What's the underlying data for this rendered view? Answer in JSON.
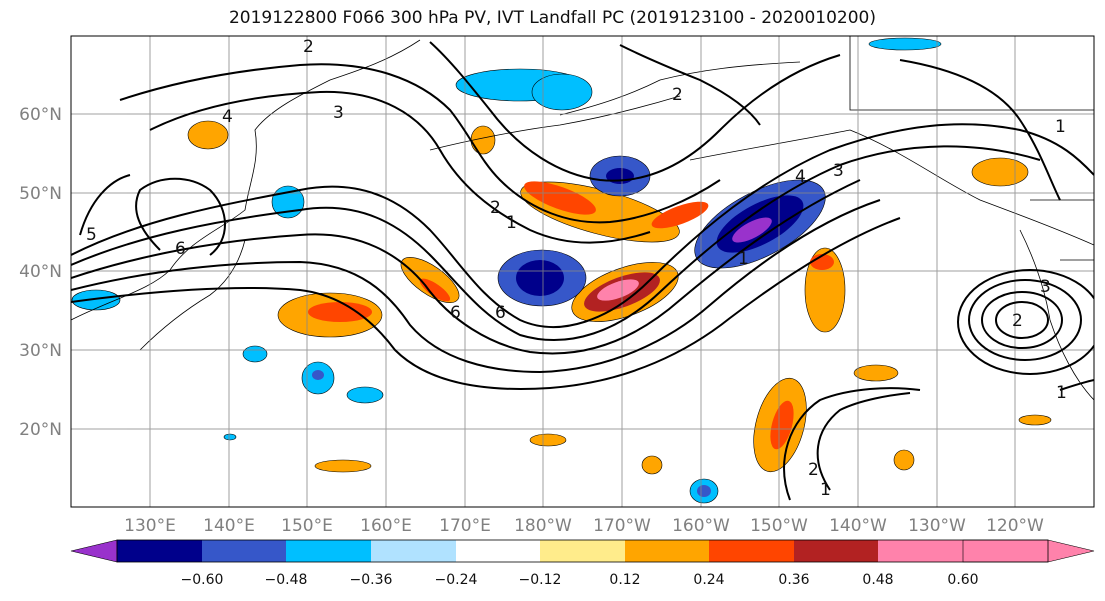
{
  "title": "2019122800 F066 300 hPa PV, IVT Landfall PC (2019123100 - 2020010200)",
  "lat_labels": [
    "60°N",
    "50°N",
    "40°N",
    "30°N",
    "20°N"
  ],
  "lon_labels": [
    "130°E",
    "140°E",
    "150°E",
    "160°E",
    "170°E",
    "180°W",
    "170°W",
    "160°W",
    "150°W",
    "140°W",
    "130°W",
    "120°W"
  ],
  "colorbar": {
    "colors": [
      "#9932CC",
      "#00008B",
      "#3657C9",
      "#00BFFF",
      "#B0E2FF",
      "#FFFFFF",
      "#FFEC8B",
      "#FFA500",
      "#FF4500",
      "#B22222",
      "#FF82AB"
    ],
    "tick_labels": [
      "−0.60",
      "−0.48",
      "−0.36",
      "−0.24",
      "−0.12",
      "0.12",
      "0.24",
      "0.36",
      "0.48",
      "0.60"
    ]
  },
  "contour_labels": [
    "2",
    "3",
    "4",
    "5",
    "6",
    "1",
    "2",
    "6",
    "6",
    "3",
    "4",
    "1",
    "1",
    "2",
    "1",
    "3",
    "2",
    "1",
    "2"
  ]
}
